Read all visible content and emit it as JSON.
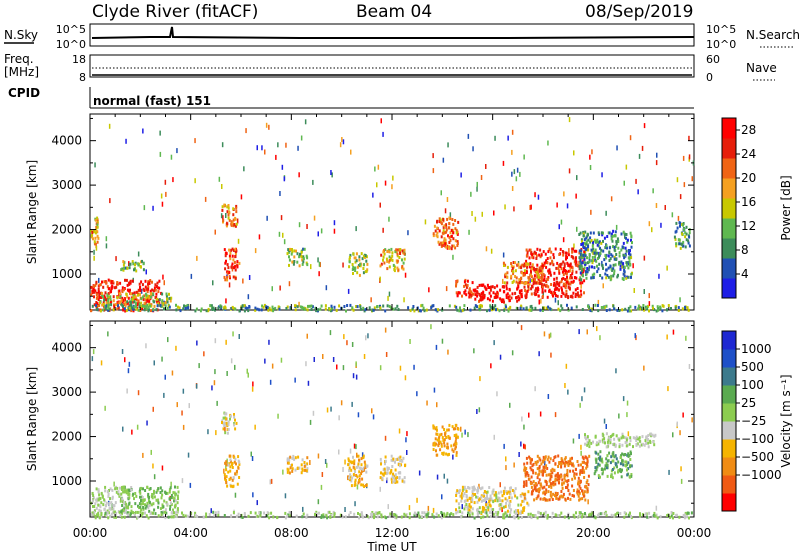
{
  "header": {
    "station": "Clyde River (fitACF)",
    "beam": "Beam 04",
    "date": "08/Sep/2019"
  },
  "status_panels": {
    "nsky": {
      "label": "N.Sky",
      "ticks": [
        "10^5",
        "10^0"
      ]
    },
    "nsearch": {
      "label": "N.Search",
      "ticks": [
        "10^5",
        "10^0"
      ]
    },
    "freq": {
      "label_line1": "Freq.",
      "label_line2": "[MHz]",
      "ticks": [
        "18",
        "8"
      ]
    },
    "nave": {
      "label": "Nave",
      "ticks": [
        "60",
        "0"
      ]
    },
    "cpid": {
      "label": "CPID",
      "text": "normal (fast) 151"
    }
  },
  "x_axis": {
    "label": "Time UT",
    "ticks": [
      "00:00",
      "04:00",
      "08:00",
      "12:00",
      "16:00",
      "20:00",
      "00:00"
    ]
  },
  "colors": {
    "power": [
      "#1e1ee6",
      "#2050b4",
      "#3c8c5a",
      "#5fb850",
      "#c8c800",
      "#f5a020",
      "#f06414",
      "#e61e0a",
      "#ff0000"
    ],
    "velocity": [
      "#ff0000",
      "#f05a14",
      "#f08c14",
      "#f5b400",
      "#c8c8c8",
      "#8ccc50",
      "#5aaa50",
      "#3c7a8c",
      "#1e50c8",
      "#1e28d2"
    ]
  },
  "chart_data": [
    {
      "type": "heatmap",
      "name": "power",
      "ylabel": "Slant Range [km]",
      "yticks": [
        "1000",
        "2000",
        "3000",
        "4000"
      ],
      "ylim": [
        190,
        4600
      ],
      "xlim_hours": [
        0,
        24
      ],
      "colorbar": {
        "label": "Power [dB]",
        "ticks": [
          "4",
          "8",
          "12",
          "16",
          "20",
          "24",
          "28"
        ],
        "range": [
          0,
          30
        ]
      },
      "regions": [
        {
          "t": [
            0.0,
            2.8
          ],
          "r": [
            200,
            900
          ],
          "value": 26
        },
        {
          "t": [
            0.3,
            3.2
          ],
          "r": [
            300,
            600
          ],
          "value": 14
        },
        {
          "t": [
            0.0,
            0.3
          ],
          "r": [
            1700,
            2300
          ],
          "value": 18
        },
        {
          "t": [
            1.2,
            2.2
          ],
          "r": [
            1100,
            1350
          ],
          "value": 12
        },
        {
          "t": [
            5.3,
            5.9
          ],
          "r": [
            900,
            1600
          ],
          "value": 24
        },
        {
          "t": [
            5.2,
            5.8
          ],
          "r": [
            2100,
            2600
          ],
          "value": 20
        },
        {
          "t": [
            7.8,
            8.6
          ],
          "r": [
            1200,
            1600
          ],
          "value": 12
        },
        {
          "t": [
            10.2,
            11.0
          ],
          "r": [
            1000,
            1500
          ],
          "value": 14
        },
        {
          "t": [
            11.5,
            12.5
          ],
          "r": [
            1100,
            1600
          ],
          "value": 18
        },
        {
          "t": [
            13.6,
            14.6
          ],
          "r": [
            1600,
            2300
          ],
          "value": 22
        },
        {
          "t": [
            14.5,
            15.2
          ],
          "r": [
            500,
            900
          ],
          "value": 26
        },
        {
          "t": [
            15.2,
            17.2
          ],
          "r": [
            400,
            800
          ],
          "value": 28
        },
        {
          "t": [
            17.2,
            19.6
          ],
          "r": [
            500,
            1600
          ],
          "value": 27
        },
        {
          "t": [
            16.4,
            18.0
          ],
          "r": [
            800,
            1300
          ],
          "value": 20
        },
        {
          "t": [
            19.4,
            21.5
          ],
          "r": [
            900,
            2000
          ],
          "value": 8
        },
        {
          "t": [
            23.2,
            23.8
          ],
          "r": [
            1600,
            2200
          ],
          "value": 10
        },
        {
          "t": [
            0.0,
            24.0
          ],
          "r": [
            200,
            330
          ],
          "value": 10
        }
      ]
    },
    {
      "type": "heatmap",
      "name": "velocity",
      "ylabel": "Slant Range [km]",
      "yticks": [
        "1000",
        "2000",
        "3000",
        "4000"
      ],
      "ylim": [
        190,
        4600
      ],
      "xlim_hours": [
        0,
        24
      ],
      "colorbar": {
        "label": "Velocity [m s⁻¹]",
        "ticks": [
          "1000",
          "500",
          "100",
          "25",
          "−25",
          "−100",
          "−500",
          "−1000"
        ],
        "range": [
          -1000,
          1000
        ]
      },
      "regions": [
        {
          "t": [
            0.0,
            1.5
          ],
          "r": [
            300,
            900
          ],
          "value": 0
        },
        {
          "t": [
            1.2,
            3.5
          ],
          "r": [
            300,
            900
          ],
          "value": 150
        },
        {
          "t": [
            5.3,
            5.9
          ],
          "r": [
            900,
            1600
          ],
          "value": -300
        },
        {
          "t": [
            5.2,
            5.8
          ],
          "r": [
            2100,
            2600
          ],
          "value": -150
        },
        {
          "t": [
            7.8,
            8.6
          ],
          "r": [
            1200,
            1600
          ],
          "value": -300
        },
        {
          "t": [
            10.2,
            11.0
          ],
          "r": [
            900,
            1600
          ],
          "value": -300
        },
        {
          "t": [
            11.5,
            12.5
          ],
          "r": [
            1000,
            1600
          ],
          "value": -200
        },
        {
          "t": [
            13.6,
            14.6
          ],
          "r": [
            1600,
            2300
          ],
          "value": -400
        },
        {
          "t": [
            14.5,
            17.4
          ],
          "r": [
            300,
            900
          ],
          "value": -150
        },
        {
          "t": [
            17.2,
            19.8
          ],
          "r": [
            600,
            1600
          ],
          "value": -600
        },
        {
          "t": [
            19.6,
            22.5
          ],
          "r": [
            1800,
            2100
          ],
          "value": 0
        },
        {
          "t": [
            20.0,
            21.5
          ],
          "r": [
            1100,
            1700
          ],
          "value": 300
        },
        {
          "t": [
            0.0,
            24.0
          ],
          "r": [
            200,
            330
          ],
          "value": 50
        }
      ]
    }
  ]
}
